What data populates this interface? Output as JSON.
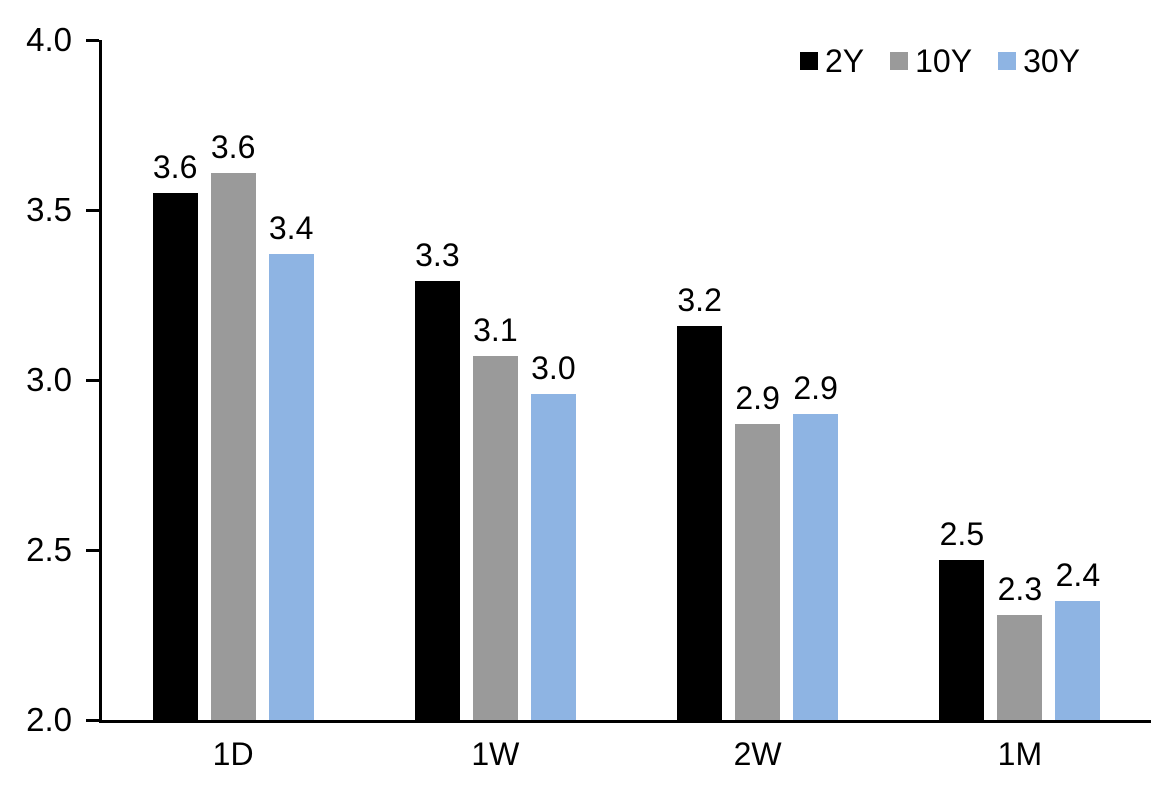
{
  "chart_data": {
    "type": "bar",
    "title": "",
    "xlabel": "",
    "ylabel": "",
    "categories": [
      "1D",
      "1W",
      "2W",
      "1M"
    ],
    "series": [
      {
        "name": "2Y",
        "color": "#000000",
        "values": [
          3.55,
          3.29,
          3.16,
          2.47
        ],
        "labels": [
          "3.6",
          "3.3",
          "3.2",
          "2.5"
        ]
      },
      {
        "name": "10Y",
        "color": "#9A9A9A",
        "values": [
          3.61,
          3.07,
          2.87,
          2.31
        ],
        "labels": [
          "3.6",
          "3.1",
          "2.9",
          "2.3"
        ]
      },
      {
        "name": "30Y",
        "color": "#8EB4E3",
        "values": [
          3.37,
          2.96,
          2.9,
          2.35
        ],
        "labels": [
          "3.4",
          "3.0",
          "2.9",
          "2.4"
        ]
      }
    ],
    "ylim": [
      2.0,
      4.0
    ],
    "yticks": [
      4.0,
      3.5,
      3.0,
      2.5,
      2.0
    ],
    "ytick_labels": [
      "4.0",
      "3.5",
      "3.0",
      "2.5",
      "2.0"
    ],
    "grid": false,
    "legend_position": "top-right",
    "axis_color": "#000000",
    "background_color": "#FFFFFF"
  }
}
